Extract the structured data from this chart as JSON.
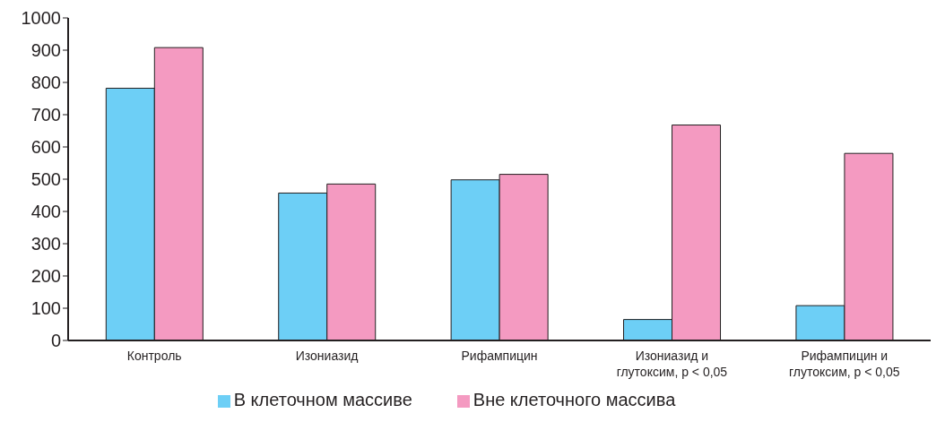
{
  "chart_data": {
    "type": "bar",
    "categories": [
      "Контроль",
      "Изониазид",
      "Рифампицин",
      "Изониазид и\nглутоксим, p < 0,05",
      "Рифампицин и\nглутоксим, p < 0,05"
    ],
    "series": [
      {
        "name": "В клеточном массиве",
        "color": "#6dcff6",
        "values": [
          782,
          457,
          498,
          65,
          108
        ]
      },
      {
        "name": "Вне клеточного массива",
        "color": "#f49ac1",
        "values": [
          908,
          485,
          515,
          668,
          580
        ]
      }
    ],
    "ylim": [
      0,
      1000
    ],
    "yticks": [
      0,
      100,
      200,
      300,
      400,
      500,
      600,
      700,
      800,
      900,
      1000
    ],
    "grid": false,
    "legend": "bottom"
  }
}
